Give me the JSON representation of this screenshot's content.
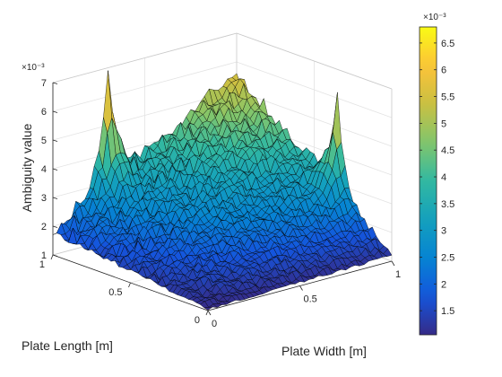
{
  "chart_data": {
    "type": "surface",
    "xlabel": "Plate Length [m]",
    "ylabel": "Plate Width [m]",
    "zlabel": "Ambiguity value",
    "x_ticks": [
      {
        "value": 0,
        "label": "0"
      },
      {
        "value": 0.5,
        "label": "0.5"
      },
      {
        "value": 1,
        "label": "1"
      }
    ],
    "y_ticks": [
      {
        "value": 0,
        "label": "0"
      },
      {
        "value": 0.5,
        "label": "0.5"
      },
      {
        "value": 1,
        "label": "1"
      }
    ],
    "z_ticks": [
      {
        "value": 0.001,
        "label": "1"
      },
      {
        "value": 0.002,
        "label": "2"
      },
      {
        "value": 0.003,
        "label": "3"
      },
      {
        "value": 0.004,
        "label": "4"
      },
      {
        "value": 0.005,
        "label": "5"
      },
      {
        "value": 0.006,
        "label": "6"
      },
      {
        "value": 0.007,
        "label": "7"
      }
    ],
    "z_exponent_label": "×10⁻³",
    "xlim": [
      0,
      1
    ],
    "ylim": [
      0,
      1
    ],
    "zlim": [
      0.001,
      0.007
    ],
    "colorbar": {
      "colormap": "parula",
      "limits": [
        0.00105,
        0.0068
      ],
      "exponent_label": "×10⁻³",
      "ticks": [
        {
          "value": 0.0015,
          "label": "1.5"
        },
        {
          "value": 0.002,
          "label": "2"
        },
        {
          "value": 0.0025,
          "label": "2.5"
        },
        {
          "value": 0.003,
          "label": "3"
        },
        {
          "value": 0.0035,
          "label": "3.5"
        },
        {
          "value": 0.004,
          "label": "4"
        },
        {
          "value": 0.0045,
          "label": "4.5"
        },
        {
          "value": 0.005,
          "label": "5"
        },
        {
          "value": 0.0055,
          "label": "5.5"
        },
        {
          "value": 0.006,
          "label": "6"
        },
        {
          "value": 0.0065,
          "label": "6.5"
        }
      ]
    },
    "surface_features": [
      {
        "feature": "corner",
        "x": 0,
        "y": 0,
        "value": 0.00105
      },
      {
        "feature": "corner",
        "x": 1,
        "y": 0,
        "value": 0.0018
      },
      {
        "feature": "corner",
        "x": 0,
        "y": 1,
        "value": 0.0012
      },
      {
        "feature": "corner",
        "x": 1,
        "y": 1,
        "value": 0.0032
      },
      {
        "feature": "peak",
        "x": 1,
        "y": 0.3,
        "value": 0.0069
      },
      {
        "feature": "peak",
        "x": 0.35,
        "y": 1,
        "value": 0.0062
      }
    ],
    "grid": true,
    "box": true
  }
}
